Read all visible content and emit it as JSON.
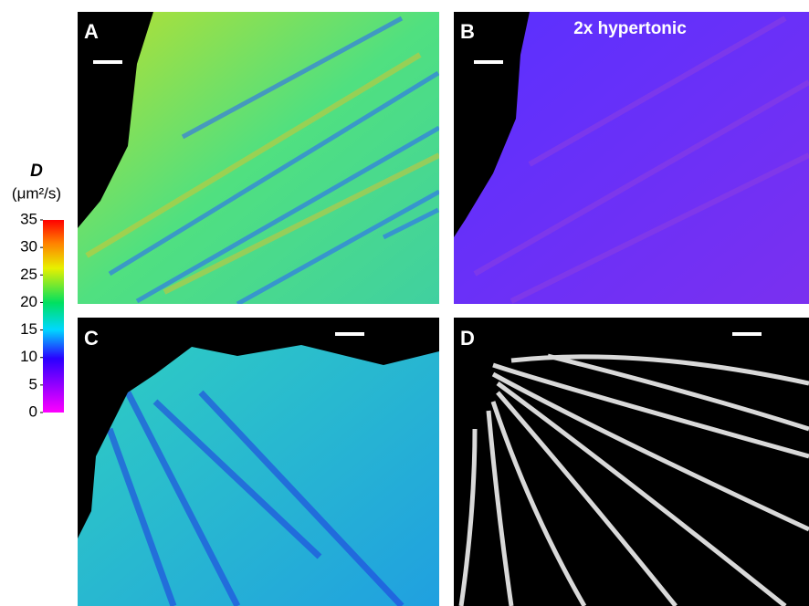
{
  "colorbar": {
    "label": "D",
    "unit": "(μm²/s)",
    "lim": [
      0,
      35
    ],
    "ticks": [
      0,
      5,
      10,
      15,
      20,
      25,
      30,
      35
    ]
  },
  "panels": [
    {
      "label": "A"
    },
    {
      "label": "B",
      "annotation": "2x hypertonic"
    },
    {
      "label": "C"
    },
    {
      "label": "D"
    }
  ]
}
